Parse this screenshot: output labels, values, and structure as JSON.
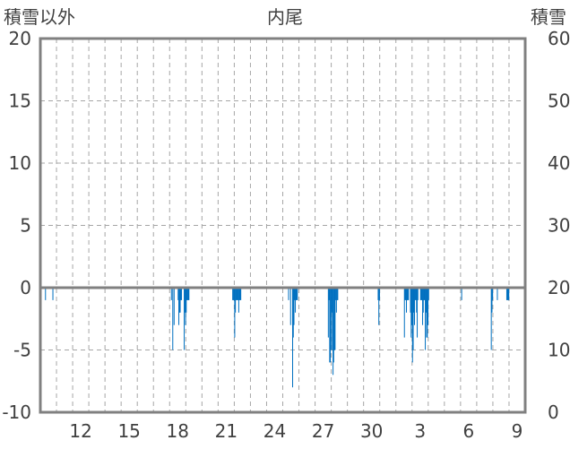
{
  "chart_data": {
    "type": "bar",
    "title": "内尾",
    "y_left_label": "積雪以外",
    "y_right_label": "積雪",
    "ylim_left": [
      -10,
      20
    ],
    "ylim_right": [
      0,
      60
    ],
    "y_left_ticks": [
      "20",
      "15",
      "10",
      "5",
      "0",
      "-5",
      "-10"
    ],
    "y_right_ticks": [
      "60",
      "50",
      "40",
      "30",
      "20",
      "10",
      "0"
    ],
    "x_tick_labels": [
      "12",
      "15",
      "18",
      "21",
      "24",
      "27",
      "30",
      "3",
      "6",
      "9"
    ],
    "grid": true,
    "colors": {
      "bars": "#0070c0",
      "axis": "#808080",
      "grid": "#a6a6a6",
      "text": "#404040"
    },
    "day_count": 30,
    "x_tick_day_index": [
      2,
      5,
      8,
      11,
      14,
      17,
      20,
      23,
      26,
      29
    ],
    "hours": [
      7,
      18,
      194,
      196,
      198,
      204,
      205,
      206,
      207,
      208,
      209,
      213,
      214,
      215,
      216,
      217,
      218,
      219,
      220,
      285,
      286,
      287,
      288,
      289,
      290,
      291,
      292,
      293,
      294,
      295,
      296,
      297,
      368,
      371,
      374,
      375,
      376,
      377,
      378,
      379,
      380,
      381,
      427,
      428,
      429,
      430,
      431,
      432,
      433,
      434,
      435,
      436,
      437,
      438,
      439,
      440,
      441,
      501,
      502,
      503,
      540,
      541,
      542,
      543,
      544,
      545,
      546,
      549,
      550,
      551,
      552,
      553,
      554,
      555,
      556,
      557,
      558,
      559,
      560,
      564,
      565,
      566,
      567,
      568,
      569,
      570,
      571,
      572,
      573,
      574,
      575,
      576,
      625,
      669,
      670,
      671,
      678,
      692,
      693,
      694,
      695
    ],
    "values": [
      -1,
      -1,
      -1,
      -5,
      -3,
      -1,
      -3,
      -2,
      -2,
      -1,
      -1,
      -5,
      -2,
      -3,
      -2,
      -1,
      -1,
      -1,
      -1,
      -1,
      -1,
      -1,
      -4,
      -2,
      -1,
      -1,
      -1,
      -1,
      -2,
      -1,
      -1,
      -1,
      -1,
      -3,
      -8,
      -4,
      -3,
      -1,
      -2,
      -1,
      -1,
      -1,
      -4,
      -1,
      -6,
      -6,
      -5,
      -2,
      -5,
      -7,
      -6,
      -5,
      -5,
      -1,
      -2,
      -1,
      -1,
      -1,
      -3,
      -1,
      -4,
      -1,
      -1,
      -2,
      -1,
      -1,
      -1,
      -2,
      -4,
      -3,
      -6,
      -5,
      -2,
      -3,
      -1,
      -1,
      -2,
      -4,
      -1,
      -1,
      -1,
      -1,
      -3,
      -2,
      -1,
      -1,
      -5,
      -2,
      -4,
      -4,
      -3,
      -1,
      -1,
      -5,
      -2,
      -1,
      -1,
      -1,
      -1,
      -1,
      -1
    ]
  }
}
